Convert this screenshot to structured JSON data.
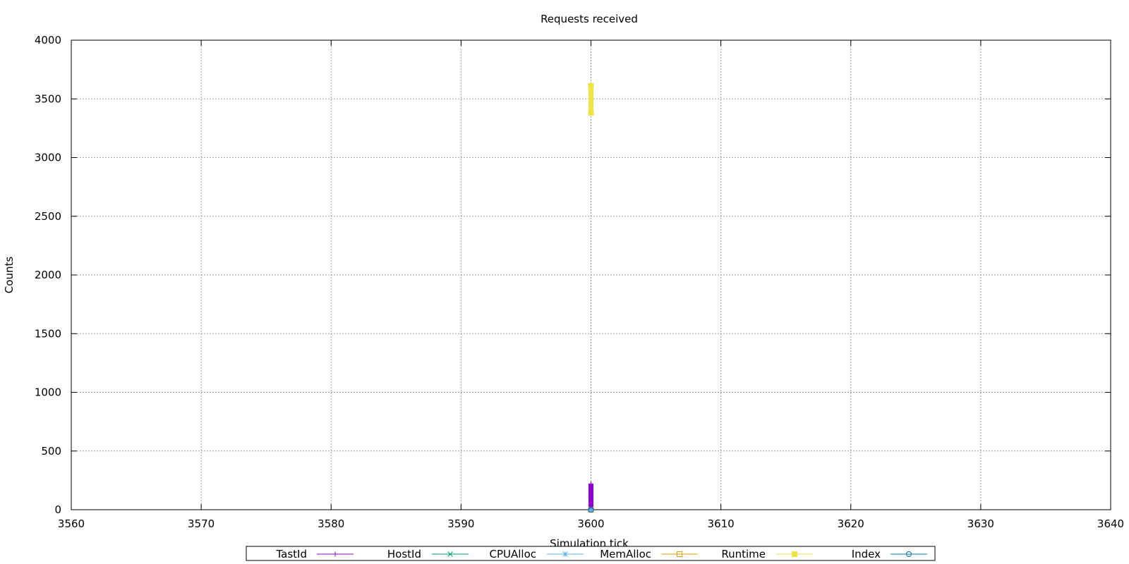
{
  "chart_data": {
    "type": "line",
    "title": "Requests received",
    "xlabel": "Simulation tick",
    "ylabel": "Counts",
    "xlim": [
      3560,
      3640
    ],
    "ylim": [
      0,
      4000
    ],
    "xticks": [
      3560,
      3570,
      3580,
      3590,
      3600,
      3610,
      3620,
      3630,
      3640
    ],
    "yticks": [
      0,
      500,
      1000,
      1500,
      2000,
      2500,
      3000,
      3500,
      4000
    ],
    "grid": true,
    "legend_position": "bottom-center",
    "series": [
      {
        "name": "TastId",
        "color": "#9400d3",
        "marker": "plus",
        "points": [
          [
            3600,
            0
          ],
          [
            3600,
            220
          ]
        ]
      },
      {
        "name": "HostId",
        "color": "#009e73",
        "marker": "cross",
        "points": [
          [
            3600,
            0
          ],
          [
            3600,
            0
          ]
        ]
      },
      {
        "name": "CPUAlloc",
        "color": "#56b4e9",
        "marker": "star",
        "points": [
          [
            3600,
            0
          ],
          [
            3600,
            0
          ]
        ]
      },
      {
        "name": "MemAlloc",
        "color": "#e69f00",
        "marker": "open-square",
        "points": [
          [
            3600,
            0
          ],
          [
            3600,
            0
          ]
        ]
      },
      {
        "name": "Runtime",
        "color": "#f0e442",
        "marker": "filled-square",
        "points": [
          [
            3600,
            3380
          ],
          [
            3600,
            3610
          ]
        ]
      },
      {
        "name": "Index",
        "color": "#0072b2",
        "marker": "open-circle",
        "points": [
          [
            3600,
            0
          ],
          [
            3600,
            0
          ]
        ]
      }
    ]
  }
}
